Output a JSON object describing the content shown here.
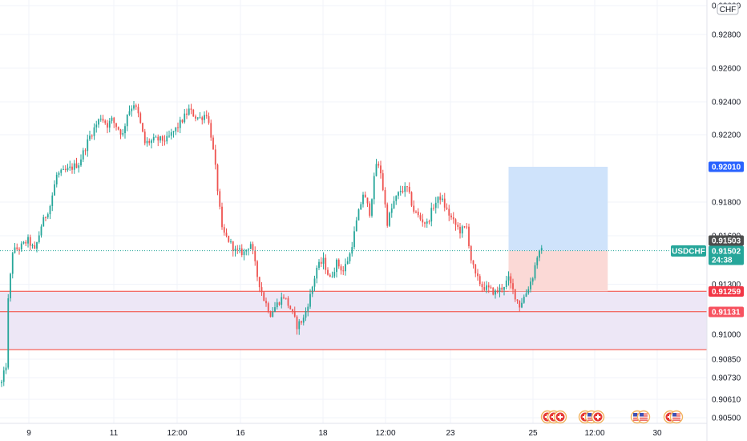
{
  "chart_data": {
    "type": "candlestick",
    "symbol": "USDCHF",
    "currency_badge": "CHF",
    "x_ticks": [
      "9",
      "11",
      "12:00",
      "16",
      "18",
      "12:00",
      "23",
      "25",
      "12:00",
      "30"
    ],
    "y_ticks": [
      "0.93000",
      "0.92800",
      "0.92600",
      "0.92400",
      "0.92200",
      "0.91800",
      "0.91600",
      "0.91300",
      "0.91100",
      "0.91000",
      "0.90850",
      "0.90730",
      "0.90610",
      "0.90500"
    ],
    "ylim": [
      0.9048,
      0.9306
    ],
    "price_tags": [
      {
        "id": "target",
        "label": "0.92010",
        "color": "#2962ff"
      },
      {
        "id": "prev",
        "label": "0.91503",
        "color": "#4d4d4d"
      },
      {
        "id": "last",
        "label": "0.91502",
        "color": "#26a69a",
        "countdown": "24:38"
      },
      {
        "id": "entry",
        "label": "0.91259",
        "color": "#f23645"
      },
      {
        "id": "zone_low",
        "label": "0.91131",
        "color": "#f7525f"
      }
    ],
    "colors": {
      "up": "#26a69a",
      "down": "#ef5350",
      "grid": "#f0f3fa",
      "zone_fill": "#ede7f6",
      "zone_line": "#f44336",
      "tp_fill": "#cfe3fb",
      "sl_fill": "#fbd9d6"
    },
    "close_path": [
      [
        0,
        0.907
      ],
      [
        2,
        0.9081
      ],
      [
        3,
        0.912
      ],
      [
        5,
        0.915
      ],
      [
        8,
        0.9152
      ],
      [
        12,
        0.9157
      ],
      [
        15,
        0.915
      ],
      [
        18,
        0.9166
      ],
      [
        22,
        0.9178
      ],
      [
        25,
        0.9196
      ],
      [
        30,
        0.9199
      ],
      [
        35,
        0.9203
      ],
      [
        40,
        0.9219
      ],
      [
        45,
        0.9231
      ],
      [
        48,
        0.9226
      ],
      [
        50,
        0.9229
      ],
      [
        55,
        0.922
      ],
      [
        57,
        0.9233
      ],
      [
        60,
        0.9239
      ],
      [
        62,
        0.9232
      ],
      [
        65,
        0.9215
      ],
      [
        70,
        0.9217
      ],
      [
        75,
        0.9217
      ],
      [
        80,
        0.9225
      ],
      [
        85,
        0.9235
      ],
      [
        88,
        0.9231
      ],
      [
        90,
        0.923
      ],
      [
        93,
        0.9233
      ],
      [
        95,
        0.922
      ],
      [
        97,
        0.92
      ],
      [
        100,
        0.9163
      ],
      [
        103,
        0.9157
      ],
      [
        106,
        0.915
      ],
      [
        110,
        0.9149
      ],
      [
        113,
        0.9155
      ],
      [
        116,
        0.9135
      ],
      [
        119,
        0.9121
      ],
      [
        122,
        0.9112
      ],
      [
        125,
        0.9118
      ],
      [
        128,
        0.9123
      ],
      [
        131,
        0.9115
      ],
      [
        134,
        0.9105
      ],
      [
        137,
        0.9109
      ],
      [
        140,
        0.9123
      ],
      [
        143,
        0.914
      ],
      [
        146,
        0.9144
      ],
      [
        149,
        0.9133
      ],
      [
        152,
        0.9143
      ],
      [
        155,
        0.9138
      ],
      [
        158,
        0.9148
      ],
      [
        161,
        0.9168
      ],
      [
        164,
        0.9185
      ],
      [
        167,
        0.9174
      ],
      [
        170,
        0.9203
      ],
      [
        172,
        0.9198
      ],
      [
        175,
        0.9168
      ],
      [
        178,
        0.918
      ],
      [
        181,
        0.9187
      ],
      [
        184,
        0.9188
      ],
      [
        187,
        0.9175
      ],
      [
        190,
        0.917
      ],
      [
        193,
        0.9167
      ],
      [
        196,
        0.9178
      ],
      [
        199,
        0.9183
      ],
      [
        202,
        0.9175
      ],
      [
        205,
        0.9168
      ],
      [
        208,
        0.9163
      ],
      [
        211,
        0.9165
      ],
      [
        213,
        0.9145
      ],
      [
        215,
        0.9135
      ],
      [
        218,
        0.9129
      ],
      [
        221,
        0.9127
      ],
      [
        224,
        0.9125
      ],
      [
        227,
        0.9128
      ],
      [
        230,
        0.9133
      ],
      [
        233,
        0.9123
      ],
      [
        235,
        0.9117
      ],
      [
        238,
        0.9125
      ],
      [
        241,
        0.9135
      ],
      [
        243,
        0.9147
      ],
      [
        245,
        0.915
      ]
    ],
    "position": {
      "entry": 0.91502,
      "target": 0.9201,
      "stop": 0.91259,
      "start_index": 230,
      "end_index": 275
    },
    "support_zone": {
      "top": 0.91259,
      "mid": 0.91131,
      "bottom": 0.90905
    },
    "events": [
      {
        "flags": [
          "ch",
          "ch",
          "ch"
        ]
      },
      {
        "flags": [
          "ch",
          "us",
          "ch"
        ]
      },
      {
        "flags": [
          "us",
          "us"
        ]
      },
      {
        "flags": [
          "ch",
          "us"
        ]
      }
    ]
  }
}
